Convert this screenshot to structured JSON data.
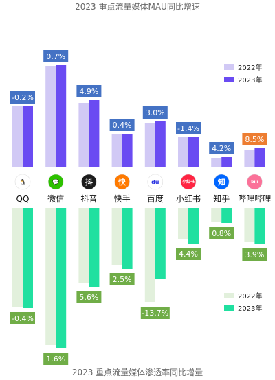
{
  "chart_data": [
    {
      "type": "bar",
      "title": "2023 重点流量媒体MAU同比增速",
      "categories": [
        "QQ",
        "微信",
        "抖音",
        "快手",
        "百度",
        "小红书",
        "知乎",
        "哔哩哔哩"
      ],
      "series": [
        {
          "name": "2022年",
          "values": [
            88,
            147,
            93,
            48,
            64,
            43,
            13,
            25
          ]
        },
        {
          "name": "2023年",
          "values": [
            88,
            148,
            97,
            48,
            66,
            43,
            14,
            27
          ]
        }
      ],
      "labels": [
        "-0.2%",
        "0.7%",
        "4.9%",
        "0.4%",
        "3.0%",
        "-1.4%",
        "4.2%",
        "8.5%"
      ],
      "label_colors": [
        "#4472c4",
        "#4472c4",
        "#4472c4",
        "#4472c4",
        "#4472c4",
        "#4472c4",
        "#4472c4",
        "#ed7d31"
      ],
      "colors": [
        "#d1c9f5",
        "#6a4bf2"
      ]
    },
    {
      "type": "bar",
      "title": "2023 重点流量媒体渗透率同比增量",
      "categories": [
        "QQ",
        "微信",
        "抖音",
        "快手",
        "百度",
        "小红书",
        "知乎",
        "哔哩哔哩"
      ],
      "series": [
        {
          "name": "2022年",
          "values": [
            145,
            200,
            110,
            83,
            138,
            46,
            20,
            50
          ]
        },
        {
          "name": "2023年",
          "values": [
            146,
            205,
            115,
            89,
            104,
            52,
            22,
            53
          ]
        }
      ],
      "labels": [
        "-0.4%",
        "1.6%",
        "5.6%",
        "2.5%",
        "-13.7%",
        "4.4%",
        "0.8%",
        "3.9%"
      ],
      "label_colors": [
        "#70ad47",
        "#70ad47",
        "#70ad47",
        "#70ad47",
        "#70ad47",
        "#70ad47",
        "#70ad47",
        "#70ad47"
      ],
      "colors": [
        "#e2f0dc",
        "#20e0a0"
      ]
    }
  ],
  "icons": [
    {
      "name": "qq-icon",
      "glyph": "🐧",
      "bg": "#ffffff",
      "fg": "#111111"
    },
    {
      "name": "wechat-icon",
      "glyph": "💬",
      "bg": "#2dc100",
      "fg": "#ffffff"
    },
    {
      "name": "douyin-icon",
      "glyph": "抖",
      "bg": "#1c1c1c",
      "fg": "#ffffff"
    },
    {
      "name": "kuaishou-icon",
      "glyph": "快",
      "bg": "#ff7a00",
      "fg": "#ffffff"
    },
    {
      "name": "baidu-icon",
      "glyph": "du",
      "bg": "#ffffff",
      "fg": "#2932e1"
    },
    {
      "name": "xiaohongshu-icon",
      "glyph": "小红书",
      "bg": "#ff2442",
      "fg": "#ffffff"
    },
    {
      "name": "zhihu-icon",
      "glyph": "知",
      "bg": "#0066ff",
      "fg": "#ffffff"
    },
    {
      "name": "bilibili-icon",
      "glyph": "bili",
      "bg": "#fb7299",
      "fg": "#ffffff"
    }
  ]
}
